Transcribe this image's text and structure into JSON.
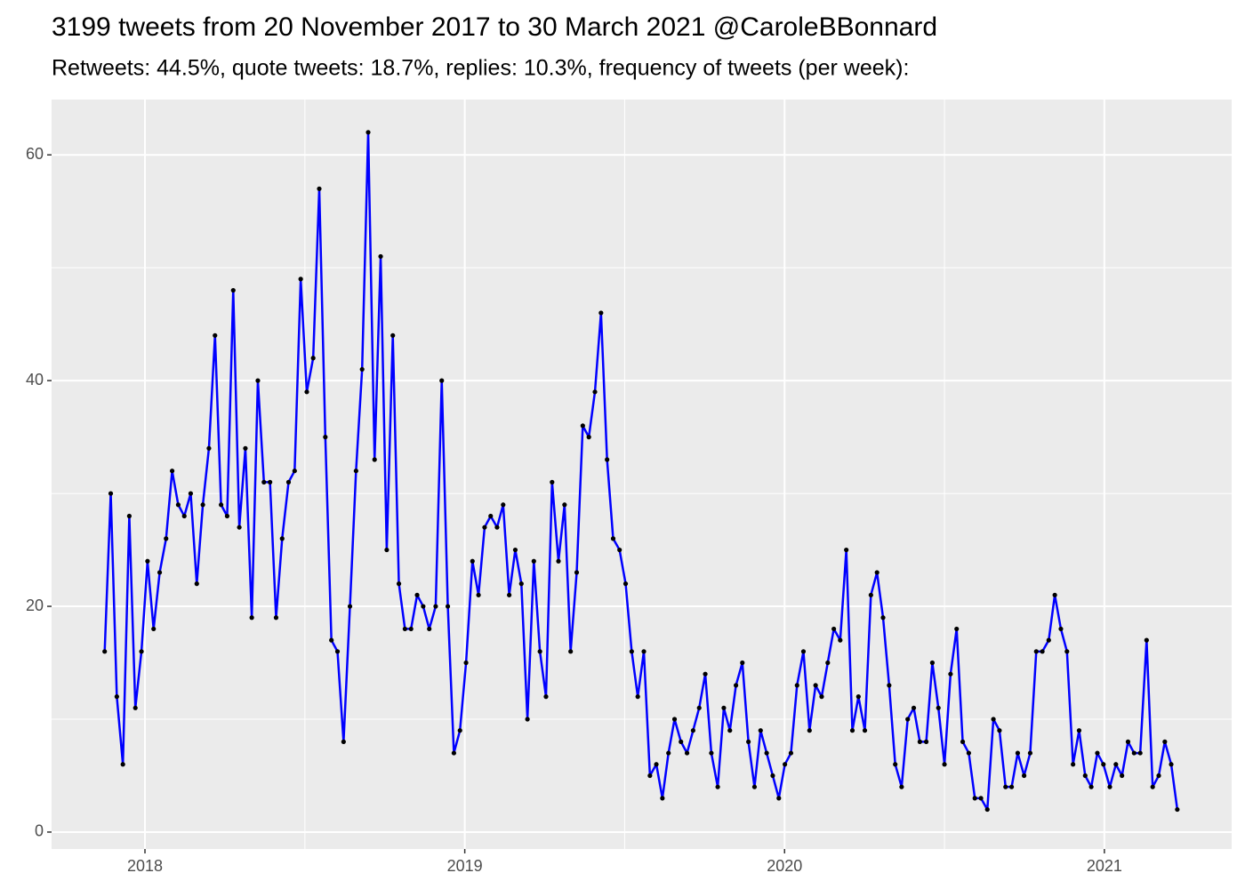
{
  "chart_data": {
    "type": "line",
    "title": "3199 tweets from 20 November 2017 to 30 March 2021 @CaroleBBonnard",
    "subtitle": "Retweets: 44.5%, quote tweets: 18.7%, replies: 10.3%, frequency of tweets (per week):",
    "x": [
      2017.874,
      2017.893,
      2017.912,
      2017.931,
      2017.951,
      2017.97,
      2017.989,
      2018.008,
      2018.027,
      2018.046,
      2018.066,
      2018.085,
      2018.104,
      2018.123,
      2018.143,
      2018.162,
      2018.181,
      2018.2,
      2018.219,
      2018.238,
      2018.257,
      2018.276,
      2018.295,
      2018.314,
      2018.334,
      2018.353,
      2018.372,
      2018.391,
      2018.41,
      2018.429,
      2018.449,
      2018.468,
      2018.487,
      2018.506,
      2018.526,
      2018.545,
      2018.564,
      2018.583,
      2018.602,
      2018.621,
      2018.641,
      2018.66,
      2018.679,
      2018.698,
      2018.718,
      2018.737,
      2018.756,
      2018.775,
      2018.794,
      2018.813,
      2018.832,
      2018.851,
      2018.87,
      2018.889,
      2018.909,
      2018.928,
      2018.947,
      2018.966,
      2018.985,
      2019.004,
      2019.024,
      2019.043,
      2019.062,
      2019.081,
      2019.101,
      2019.12,
      2019.139,
      2019.158,
      2019.177,
      2019.196,
      2019.216,
      2019.235,
      2019.254,
      2019.273,
      2019.293,
      2019.312,
      2019.331,
      2019.35,
      2019.369,
      2019.388,
      2019.407,
      2019.426,
      2019.445,
      2019.464,
      2019.484,
      2019.503,
      2019.522,
      2019.541,
      2019.56,
      2019.579,
      2019.599,
      2019.618,
      2019.637,
      2019.656,
      2019.676,
      2019.695,
      2019.714,
      2019.733,
      2019.752,
      2019.771,
      2019.791,
      2019.81,
      2019.829,
      2019.848,
      2019.868,
      2019.887,
      2019.906,
      2019.925,
      2019.944,
      2019.963,
      2019.982,
      2020.001,
      2020.02,
      2020.039,
      2020.059,
      2020.078,
      2020.097,
      2020.116,
      2020.135,
      2020.154,
      2020.174,
      2020.193,
      2020.212,
      2020.231,
      2020.251,
      2020.27,
      2020.289,
      2020.308,
      2020.327,
      2020.346,
      2020.366,
      2020.385,
      2020.404,
      2020.423,
      2020.443,
      2020.462,
      2020.481,
      2020.5,
      2020.519,
      2020.538,
      2020.557,
      2020.576,
      2020.595,
      2020.614,
      2020.634,
      2020.653,
      2020.672,
      2020.691,
      2020.71,
      2020.729,
      2020.749,
      2020.768,
      2020.787,
      2020.806,
      2020.826,
      2020.845,
      2020.864,
      2020.883,
      2020.902,
      2020.921,
      2020.94,
      2020.959,
      2020.978,
      2020.997,
      2021.017,
      2021.036,
      2021.055,
      2021.074,
      2021.093,
      2021.112,
      2021.132,
      2021.151,
      2021.17,
      2021.189,
      2021.209,
      2021.228
    ],
    "series": [
      {
        "color": "#0000ff",
        "point_color": "#000000",
        "values": [
          16,
          30,
          12,
          6,
          28,
          11,
          16,
          24,
          18,
          23,
          26,
          32,
          29,
          28,
          30,
          22,
          29,
          34,
          44,
          29,
          28,
          48,
          27,
          34,
          19,
          40,
          31,
          31,
          19,
          26,
          31,
          32,
          49,
          39,
          42,
          57,
          35,
          17,
          16,
          8,
          20,
          32,
          41,
          62,
          33,
          51,
          25,
          44,
          22,
          18,
          18,
          21,
          20,
          18,
          20,
          40,
          20,
          7,
          9,
          15,
          24,
          21,
          27,
          28,
          27,
          29,
          21,
          25,
          22,
          10,
          24,
          16,
          12,
          31,
          24,
          29,
          16,
          23,
          36,
          35,
          39,
          46,
          33,
          26,
          25,
          22,
          16,
          12,
          16,
          5,
          6,
          3,
          7,
          10,
          8,
          7,
          9,
          11,
          14,
          7,
          4,
          11,
          9,
          13,
          15,
          8,
          4,
          9,
          7,
          5,
          3,
          6,
          7,
          13,
          16,
          9,
          13,
          12,
          15,
          18,
          17,
          25,
          9,
          12,
          9,
          21,
          23,
          19,
          13,
          6,
          4,
          10,
          11,
          8,
          8,
          15,
          11,
          6,
          14,
          18,
          8,
          7,
          3,
          3,
          2,
          10,
          9,
          4,
          4,
          7,
          5,
          7,
          16,
          16,
          17,
          21,
          18,
          16,
          6,
          9,
          5,
          4,
          7,
          6,
          4,
          6,
          5,
          8,
          7,
          7,
          17,
          4,
          5,
          8,
          6,
          2
        ]
      }
    ],
    "xlim": [
      2017.708,
      2021.398
    ],
    "xticks": [
      2018,
      2019,
      2020,
      2021
    ],
    "xminor": [
      2018.5,
      2019.5,
      2020.5
    ],
    "ylim": [
      -1.5,
      64.9
    ],
    "yticks": [
      0,
      20,
      40,
      60
    ],
    "yminor": [
      10,
      30,
      50
    ],
    "grid": true,
    "background": "#ebebeb"
  }
}
